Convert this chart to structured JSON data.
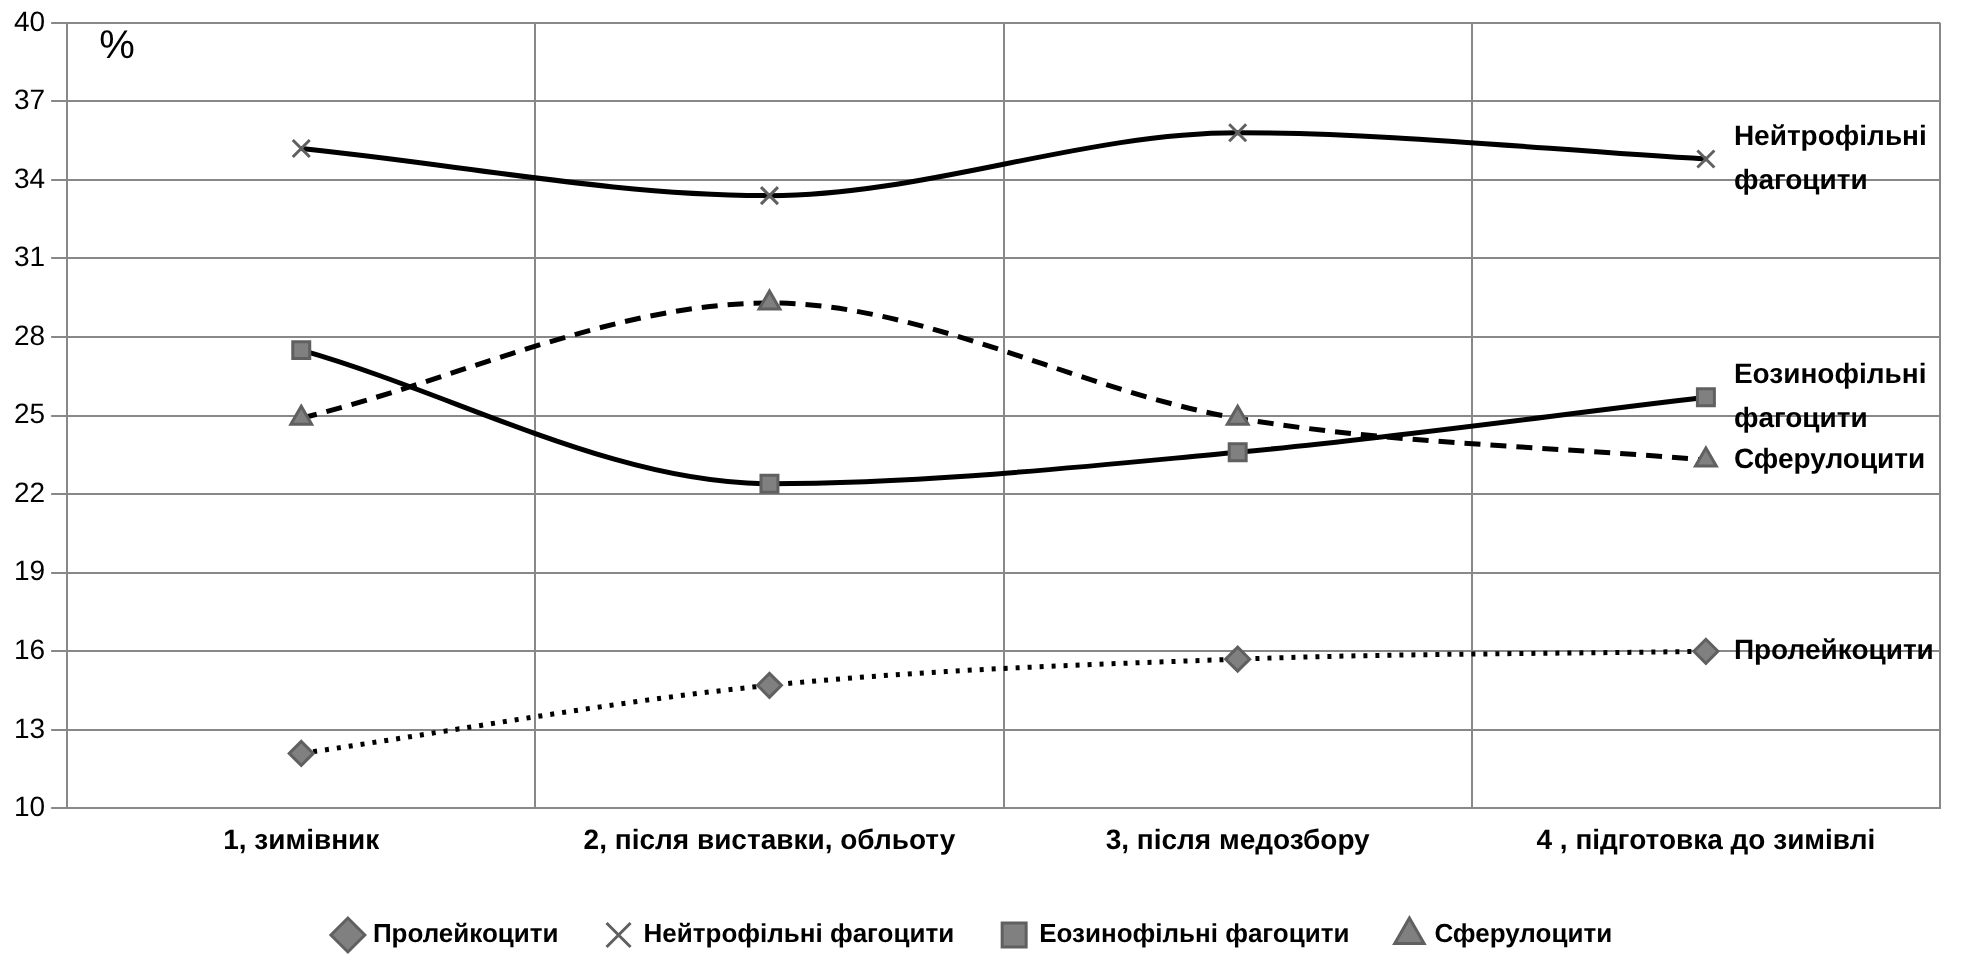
{
  "chart_data": {
    "type": "line",
    "ylabel": "%",
    "categories": [
      "1, зимівник",
      "2, після виставки, обльоту",
      "3, після медозбору",
      "4 , підготовка до зимівлі"
    ],
    "series": [
      {
        "name": "Пролейкоцити",
        "color": "#000000",
        "marker": "diamond",
        "line_style": "dotted",
        "values": [
          12.1,
          14.7,
          15.7,
          16.0
        ]
      },
      {
        "name": "Нейтрофільні фагоцити",
        "color": "#000000",
        "marker": "cross",
        "line_style": "solid",
        "values": [
          35.2,
          33.4,
          35.8,
          34.8
        ]
      },
      {
        "name": "Еозинофільні фагоцити",
        "color": "#000000",
        "marker": "square",
        "line_style": "solid",
        "values": [
          27.5,
          22.4,
          23.6,
          25.7
        ]
      },
      {
        "name": "Сферулоцити",
        "color": "#000000",
        "marker": "triangle",
        "line_style": "dashed",
        "values": [
          24.9,
          29.3,
          24.9,
          23.3
        ]
      }
    ],
    "ylim": [
      10,
      40
    ],
    "yticks": [
      10,
      13,
      16,
      19,
      22,
      25,
      28,
      31,
      34,
      37,
      40
    ],
    "grid": true,
    "legend": "bottom",
    "annotations": [
      {
        "text": "Нейтрофільні фагоцити",
        "x": "4 , підготовка до зимівлі",
        "y": 34.8
      },
      {
        "text": "Еозинофільні фагоцити",
        "x": "4 , підготовка до зимівлі",
        "y": 25.7
      },
      {
        "text": "Сферулоцити",
        "x": "4 , підготовка до зимівлі",
        "y": 23.3
      },
      {
        "text": "Пролейкоцити",
        "x": "4 , підготовка до зимівлі",
        "y": 16.0
      }
    ]
  }
}
